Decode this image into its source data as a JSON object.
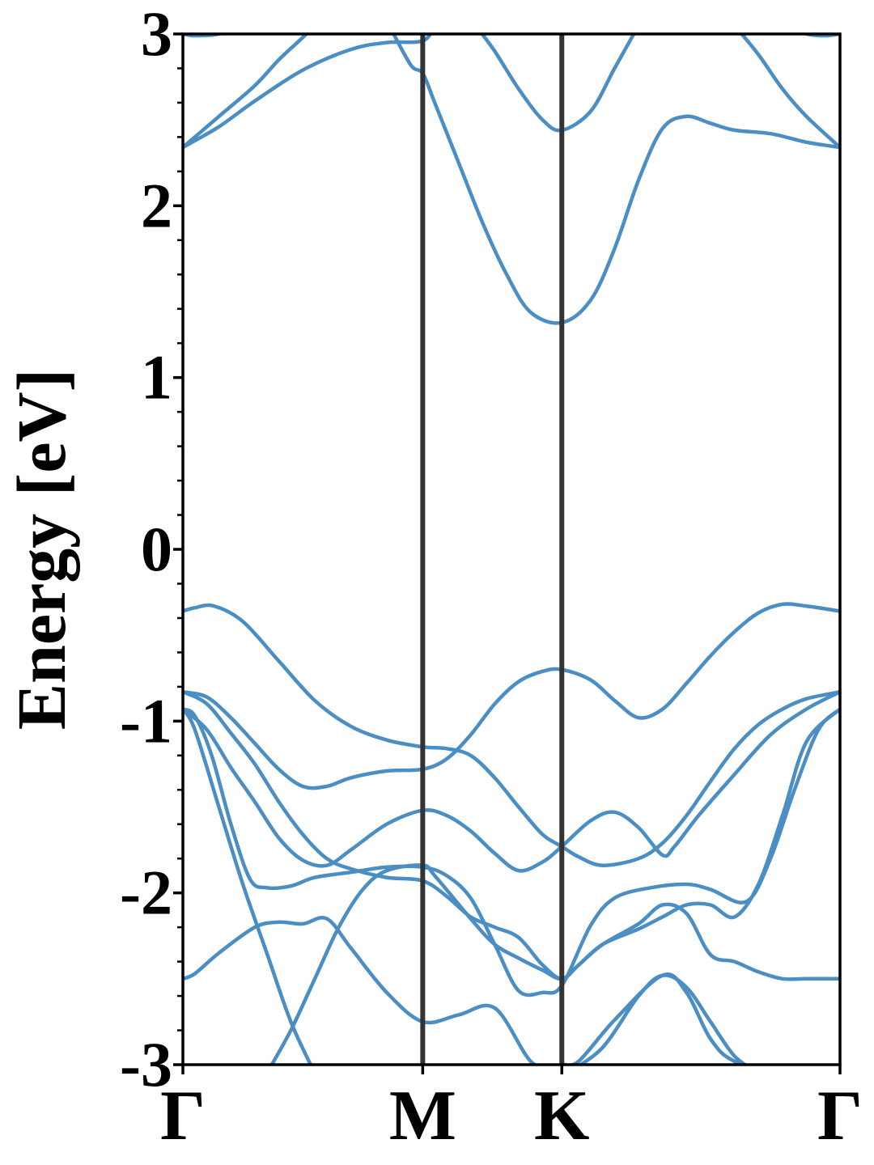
{
  "chart_data": {
    "type": "line",
    "ylabel": "Energy [eV]",
    "xlabel": "",
    "title": "",
    "ylim": [
      -3,
      3
    ],
    "xlim": [
      0,
      2.74
    ],
    "yticks": [
      -3,
      -2,
      -1,
      0,
      1,
      2,
      3
    ],
    "ytick_labels": [
      "-3",
      "-2",
      "-1",
      "0",
      "1",
      "2",
      "3"
    ],
    "yminor_step": 0.2,
    "kpoints": [
      {
        "label": "Γ",
        "x": 0
      },
      {
        "label": "M",
        "x": 1.0
      },
      {
        "label": "K",
        "x": 1.58
      },
      {
        "label": "Γ",
        "x": 2.74
      }
    ],
    "band_color": "#4a8ec3",
    "divider_color": "#333333",
    "legend": "none",
    "grid": false,
    "series": [
      {
        "values": [
          [
            0.0,
            -0.36
          ],
          [
            0.05,
            -0.34
          ],
          [
            0.13,
            -0.33
          ],
          [
            0.25,
            -0.42
          ],
          [
            0.4,
            -0.65
          ],
          [
            0.55,
            -0.88
          ],
          [
            0.7,
            -1.03
          ],
          [
            0.85,
            -1.11
          ],
          [
            1.0,
            -1.15
          ],
          [
            1.1,
            -1.16
          ],
          [
            1.2,
            -1.2
          ],
          [
            1.3,
            -1.33
          ],
          [
            1.4,
            -1.5
          ],
          [
            1.5,
            -1.66
          ],
          [
            1.58,
            -1.73
          ],
          [
            1.65,
            -1.79
          ],
          [
            1.75,
            -1.84
          ],
          [
            1.9,
            -1.8
          ],
          [
            2.0,
            -1.71
          ],
          [
            2.1,
            -1.55
          ],
          [
            2.2,
            -1.35
          ],
          [
            2.3,
            -1.16
          ],
          [
            2.4,
            -1.02
          ],
          [
            2.5,
            -0.93
          ],
          [
            2.6,
            -0.87
          ],
          [
            2.74,
            -0.83
          ]
        ]
      },
      {
        "values": [
          [
            0.0,
            -0.83
          ],
          [
            0.1,
            -0.86
          ],
          [
            0.2,
            -0.98
          ],
          [
            0.3,
            -1.13
          ],
          [
            0.4,
            -1.28
          ],
          [
            0.5,
            -1.38
          ],
          [
            0.6,
            -1.38
          ],
          [
            0.7,
            -1.33
          ],
          [
            0.85,
            -1.29
          ],
          [
            1.0,
            -1.28
          ],
          [
            1.1,
            -1.22
          ],
          [
            1.2,
            -1.08
          ],
          [
            1.3,
            -0.9
          ],
          [
            1.4,
            -0.77
          ],
          [
            1.5,
            -0.71
          ],
          [
            1.58,
            -0.7
          ],
          [
            1.7,
            -0.76
          ],
          [
            1.8,
            -0.88
          ],
          [
            1.9,
            -0.98
          ],
          [
            2.0,
            -0.93
          ],
          [
            2.1,
            -0.78
          ],
          [
            2.2,
            -0.62
          ],
          [
            2.3,
            -0.48
          ],
          [
            2.4,
            -0.37
          ],
          [
            2.5,
            -0.32
          ],
          [
            2.6,
            -0.33
          ],
          [
            2.74,
            -0.36
          ]
        ]
      },
      {
        "values": [
          [
            0.0,
            -0.83
          ],
          [
            0.1,
            -0.9
          ],
          [
            0.2,
            -1.07
          ],
          [
            0.3,
            -1.25
          ],
          [
            0.4,
            -1.47
          ],
          [
            0.5,
            -1.66
          ],
          [
            0.6,
            -1.8
          ],
          [
            0.7,
            -1.86
          ],
          [
            0.85,
            -1.91
          ],
          [
            1.0,
            -1.93
          ],
          [
            1.1,
            -2.02
          ],
          [
            1.2,
            -2.14
          ],
          [
            1.3,
            -2.2
          ],
          [
            1.4,
            -2.26
          ],
          [
            1.5,
            -2.42
          ],
          [
            1.58,
            -2.5
          ],
          [
            1.65,
            -2.42
          ],
          [
            1.75,
            -2.3
          ],
          [
            1.9,
            -2.21
          ],
          [
            2.0,
            -2.14
          ],
          [
            2.1,
            -2.07
          ],
          [
            2.2,
            -2.07
          ],
          [
            2.3,
            -2.14
          ],
          [
            2.4,
            -1.95
          ],
          [
            2.5,
            -1.55
          ],
          [
            2.6,
            -1.12
          ],
          [
            2.74,
            -0.93
          ]
        ]
      },
      {
        "values": [
          [
            0.0,
            -0.93
          ],
          [
            0.1,
            -1.05
          ],
          [
            0.2,
            -1.27
          ],
          [
            0.3,
            -1.47
          ],
          [
            0.4,
            -1.68
          ],
          [
            0.5,
            -1.81
          ],
          [
            0.6,
            -1.84
          ],
          [
            0.7,
            -1.75
          ],
          [
            0.85,
            -1.6
          ],
          [
            1.0,
            -1.52
          ],
          [
            1.1,
            -1.55
          ],
          [
            1.2,
            -1.64
          ],
          [
            1.3,
            -1.77
          ],
          [
            1.4,
            -1.87
          ],
          [
            1.5,
            -1.82
          ],
          [
            1.58,
            -1.73
          ],
          [
            1.7,
            -1.58
          ],
          [
            1.8,
            -1.53
          ],
          [
            1.9,
            -1.62
          ],
          [
            2.0,
            -1.78
          ],
          [
            2.05,
            -1.73
          ],
          [
            2.15,
            -1.55
          ],
          [
            2.3,
            -1.31
          ],
          [
            2.45,
            -1.08
          ],
          [
            2.6,
            -0.93
          ],
          [
            2.74,
            -0.83
          ]
        ]
      },
      {
        "values": [
          [
            0.0,
            -0.93
          ],
          [
            0.05,
            -0.97
          ],
          [
            0.12,
            -1.2
          ],
          [
            0.2,
            -1.6
          ],
          [
            0.28,
            -1.92
          ],
          [
            0.35,
            -1.97
          ],
          [
            0.45,
            -1.96
          ],
          [
            0.55,
            -1.91
          ],
          [
            0.7,
            -1.88
          ],
          [
            0.85,
            -1.85
          ],
          [
            1.0,
            -1.85
          ],
          [
            1.1,
            -1.9
          ],
          [
            1.2,
            -2.03
          ],
          [
            1.3,
            -2.3
          ],
          [
            1.4,
            -2.57
          ],
          [
            1.5,
            -2.58
          ],
          [
            1.58,
            -2.54
          ],
          [
            1.7,
            -2.19
          ],
          [
            1.8,
            -2.03
          ],
          [
            1.95,
            -1.97
          ],
          [
            2.1,
            -1.95
          ],
          [
            2.2,
            -1.98
          ],
          [
            2.35,
            -2.05
          ],
          [
            2.45,
            -1.8
          ],
          [
            2.55,
            -1.4
          ],
          [
            2.65,
            -1.05
          ],
          [
            2.74,
            -0.93
          ]
        ]
      },
      {
        "values": [
          [
            0.0,
            -2.5
          ],
          [
            0.05,
            -2.47
          ],
          [
            0.15,
            -2.35
          ],
          [
            0.3,
            -2.2
          ],
          [
            0.4,
            -2.17
          ],
          [
            0.5,
            -2.18
          ],
          [
            0.6,
            -2.15
          ],
          [
            0.7,
            -2.32
          ],
          [
            0.85,
            -2.58
          ],
          [
            1.0,
            -2.75
          ],
          [
            1.15,
            -2.71
          ],
          [
            1.3,
            -2.67
          ],
          [
            1.45,
            -2.98
          ],
          [
            1.55,
            -3.02
          ],
          [
            1.58,
            -3.0
          ],
          [
            1.65,
            -2.98
          ],
          [
            1.8,
            -2.74
          ],
          [
            2.0,
            -2.48
          ],
          [
            2.1,
            -2.58
          ],
          [
            2.2,
            -2.85
          ],
          [
            2.3,
            -2.98
          ],
          [
            2.5,
            -3.05
          ]
        ]
      },
      {
        "values": [
          [
            0.35,
            -3.05
          ],
          [
            0.45,
            -2.8
          ],
          [
            0.55,
            -2.5
          ],
          [
            0.65,
            -2.2
          ],
          [
            0.75,
            -1.98
          ],
          [
            0.85,
            -1.87
          ],
          [
            1.0,
            -1.84
          ],
          [
            1.05,
            -1.9
          ],
          [
            1.2,
            -2.15
          ],
          [
            1.3,
            -2.3
          ],
          [
            1.4,
            -2.38
          ],
          [
            1.5,
            -2.45
          ],
          [
            1.58,
            -2.5
          ],
          [
            1.65,
            -2.42
          ],
          [
            1.75,
            -2.3
          ],
          [
            1.9,
            -2.18
          ],
          [
            2.0,
            -2.07
          ],
          [
            2.1,
            -2.12
          ],
          [
            2.2,
            -2.36
          ],
          [
            2.3,
            -2.4
          ],
          [
            2.4,
            -2.46
          ],
          [
            2.5,
            -2.5
          ],
          [
            2.6,
            -2.5
          ],
          [
            2.74,
            -2.5
          ]
        ]
      },
      {
        "values": [
          [
            0.0,
            -0.93
          ],
          [
            0.05,
            -1.05
          ],
          [
            0.15,
            -1.5
          ],
          [
            0.25,
            -1.95
          ],
          [
            0.35,
            -2.35
          ],
          [
            0.45,
            -2.75
          ],
          [
            0.55,
            -3.05
          ]
        ]
      },
      {
        "values": [
          [
            1.6,
            -3.05
          ],
          [
            1.75,
            -2.9
          ],
          [
            1.9,
            -2.6
          ],
          [
            2.0,
            -2.48
          ],
          [
            2.1,
            -2.55
          ],
          [
            2.2,
            -2.75
          ],
          [
            2.3,
            -2.95
          ],
          [
            2.4,
            -3.05
          ]
        ]
      },
      {
        "values": [
          [
            0.0,
            2.34
          ],
          [
            0.15,
            2.52
          ],
          [
            0.3,
            2.7
          ],
          [
            0.4,
            2.85
          ],
          [
            0.5,
            2.98
          ],
          [
            0.55,
            3.05
          ]
        ]
      },
      {
        "values": [
          [
            0.0,
            2.34
          ],
          [
            0.15,
            2.46
          ],
          [
            0.3,
            2.61
          ],
          [
            0.5,
            2.79
          ],
          [
            0.7,
            2.91
          ],
          [
            0.85,
            2.95
          ],
          [
            1.0,
            2.96
          ],
          [
            1.05,
            3.05
          ]
        ]
      },
      {
        "values": [
          [
            0.86,
            3.05
          ],
          [
            0.95,
            2.82
          ],
          [
            1.0,
            2.77
          ],
          [
            1.05,
            2.6
          ],
          [
            1.15,
            2.25
          ],
          [
            1.25,
            1.9
          ],
          [
            1.35,
            1.6
          ],
          [
            1.45,
            1.38
          ],
          [
            1.58,
            1.32
          ],
          [
            1.7,
            1.45
          ],
          [
            1.8,
            1.75
          ],
          [
            1.9,
            2.15
          ],
          [
            2.0,
            2.45
          ],
          [
            2.1,
            2.52
          ],
          [
            2.2,
            2.48
          ],
          [
            2.3,
            2.44
          ],
          [
            2.45,
            2.42
          ],
          [
            2.6,
            2.37
          ],
          [
            2.74,
            2.34
          ]
        ]
      },
      {
        "values": [
          [
            1.22,
            3.05
          ],
          [
            1.3,
            2.9
          ],
          [
            1.4,
            2.68
          ],
          [
            1.5,
            2.5
          ],
          [
            1.58,
            2.44
          ],
          [
            1.7,
            2.55
          ],
          [
            1.8,
            2.8
          ],
          [
            1.9,
            3.05
          ]
        ]
      },
      {
        "values": [
          [
            2.3,
            3.05
          ],
          [
            2.4,
            2.88
          ],
          [
            2.5,
            2.68
          ],
          [
            2.6,
            2.52
          ],
          [
            2.74,
            2.34
          ]
        ]
      },
      {
        "values": [
          [
            0.0,
            3.0
          ],
          [
            0.05,
            2.99
          ],
          [
            0.15,
            3.0
          ],
          [
            0.22,
            3.05
          ]
        ]
      },
      {
        "values": [
          [
            2.52,
            3.05
          ],
          [
            2.6,
            3.0
          ],
          [
            2.68,
            2.99
          ],
          [
            2.74,
            3.0
          ]
        ]
      }
    ]
  }
}
